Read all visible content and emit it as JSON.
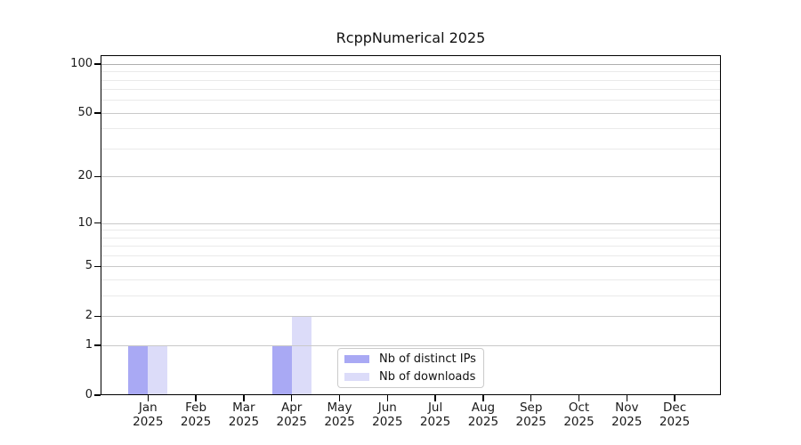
{
  "chart_data": {
    "type": "bar",
    "title": "RcppNumerical 2025",
    "categories": [
      {
        "month": "Jan",
        "year": "2025"
      },
      {
        "month": "Feb",
        "year": "2025"
      },
      {
        "month": "Mar",
        "year": "2025"
      },
      {
        "month": "Apr",
        "year": "2025"
      },
      {
        "month": "May",
        "year": "2025"
      },
      {
        "month": "Jun",
        "year": "2025"
      },
      {
        "month": "Jul",
        "year": "2025"
      },
      {
        "month": "Aug",
        "year": "2025"
      },
      {
        "month": "Sep",
        "year": "2025"
      },
      {
        "month": "Oct",
        "year": "2025"
      },
      {
        "month": "Nov",
        "year": "2025"
      },
      {
        "month": "Dec",
        "year": "2025"
      }
    ],
    "series": [
      {
        "name": "Nb of distinct IPs",
        "color": "#a9a9f4",
        "values": [
          1,
          0,
          0,
          1,
          0,
          0,
          0,
          0,
          0,
          0,
          0,
          0
        ]
      },
      {
        "name": "Nb of downloads",
        "color": "#dcdcf9",
        "values": [
          1,
          0,
          0,
          2,
          0,
          0,
          0,
          0,
          0,
          0,
          0,
          0
        ]
      }
    ],
    "xlabel": "",
    "ylabel": "",
    "yscale": "log1p",
    "ylim": [
      0,
      113
    ],
    "y_major_ticks": [
      0,
      1,
      2,
      5,
      10,
      20,
      50,
      100
    ],
    "y_minor_ticks": [
      3,
      4,
      6,
      7,
      8,
      9,
      30,
      40,
      60,
      70,
      80,
      90
    ],
    "grid": true,
    "legend_position": "inside-bottom-center",
    "axis_color": "#000000",
    "grid_major_color": "#c9c9c9",
    "grid_strong_color": "#aeaeae",
    "grid_minor_color": "#eaeaea"
  }
}
